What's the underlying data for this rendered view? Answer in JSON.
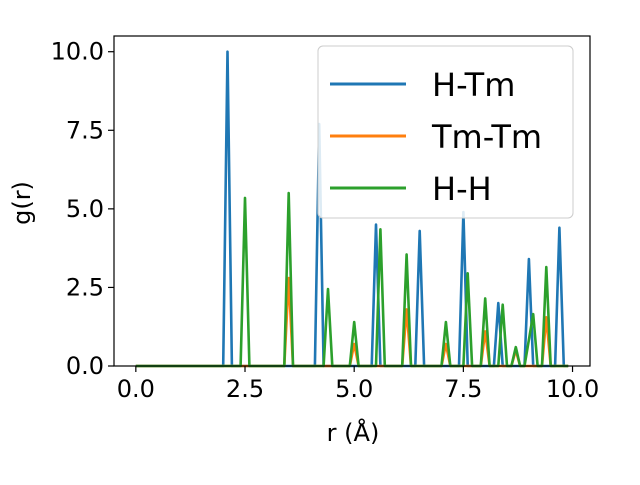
{
  "chart_data": {
    "type": "line",
    "xlabel": "r (Å)",
    "ylabel": "g(r)",
    "xlim": [
      -0.5,
      10.4
    ],
    "ylim": [
      0.0,
      10.5
    ],
    "xticks": [
      0.0,
      2.5,
      5.0,
      7.5,
      10.0
    ],
    "xtick_labels": [
      "0.0",
      "2.5",
      "5.0",
      "7.5",
      "10.0"
    ],
    "yticks": [
      0.0,
      2.5,
      5.0,
      7.5,
      10.0
    ],
    "ytick_labels": [
      "0.0",
      "2.5",
      "5.0",
      "7.5",
      "10.0"
    ],
    "grid": false,
    "legend_position": "top-right",
    "series": [
      {
        "name": "H-Tm",
        "color": "#1f77b4",
        "x": [
          0.0,
          2.0,
          2.1,
          2.2,
          4.1,
          4.2,
          4.3,
          5.4,
          5.5,
          5.6,
          6.4,
          6.5,
          6.6,
          7.4,
          7.5,
          7.6,
          8.2,
          8.3,
          8.4,
          8.9,
          9.0,
          9.1,
          9.6,
          9.7,
          9.8,
          9.9
        ],
        "y": [
          0.0,
          0.0,
          10.0,
          0.0,
          0.0,
          7.7,
          0.0,
          0.0,
          4.5,
          0.0,
          0.0,
          4.3,
          0.0,
          0.0,
          4.9,
          0.0,
          0.0,
          2.0,
          0.0,
          0.0,
          3.4,
          0.0,
          0.0,
          4.4,
          0.0,
          0.0
        ]
      },
      {
        "name": "Tm-Tm",
        "color": "#ff7f0e",
        "x": [
          0.0,
          3.4,
          3.5,
          3.6,
          4.9,
          5.0,
          5.1,
          6.1,
          6.2,
          6.3,
          7.0,
          7.1,
          7.2,
          7.9,
          8.0,
          8.1,
          8.6,
          8.7,
          8.8,
          9.3,
          9.4,
          9.5,
          9.9
        ],
        "y": [
          0.0,
          0.0,
          2.8,
          0.0,
          0.0,
          0.7,
          0.0,
          0.0,
          1.8,
          0.0,
          0.0,
          0.7,
          0.0,
          0.0,
          1.1,
          0.0,
          0.0,
          0.5,
          0.0,
          0.0,
          1.55,
          0.0,
          0.0
        ]
      },
      {
        "name": "H-H",
        "color": "#2ca02c",
        "x": [
          0.0,
          2.4,
          2.5,
          2.6,
          3.4,
          3.5,
          3.6,
          4.3,
          4.4,
          4.5,
          4.9,
          5.0,
          5.1,
          5.5,
          5.6,
          5.7,
          6.1,
          6.2,
          6.3,
          7.0,
          7.1,
          7.2,
          7.5,
          7.6,
          7.7,
          7.9,
          8.0,
          8.1,
          8.3,
          8.4,
          8.5,
          8.6,
          8.7,
          8.8,
          8.9,
          9.1,
          9.2,
          9.3,
          9.4,
          9.5,
          9.9
        ],
        "y": [
          0.0,
          0.0,
          5.35,
          0.0,
          0.0,
          5.5,
          0.0,
          0.0,
          2.45,
          0.0,
          0.0,
          1.4,
          0.0,
          0.0,
          4.35,
          0.0,
          0.0,
          3.55,
          0.0,
          0.0,
          1.4,
          0.0,
          0.0,
          2.95,
          0.0,
          0.0,
          2.15,
          0.0,
          0.0,
          1.95,
          0.0,
          0.0,
          0.6,
          0.0,
          0.0,
          1.65,
          0.0,
          0.0,
          3.15,
          0.0,
          0.0
        ]
      }
    ]
  }
}
